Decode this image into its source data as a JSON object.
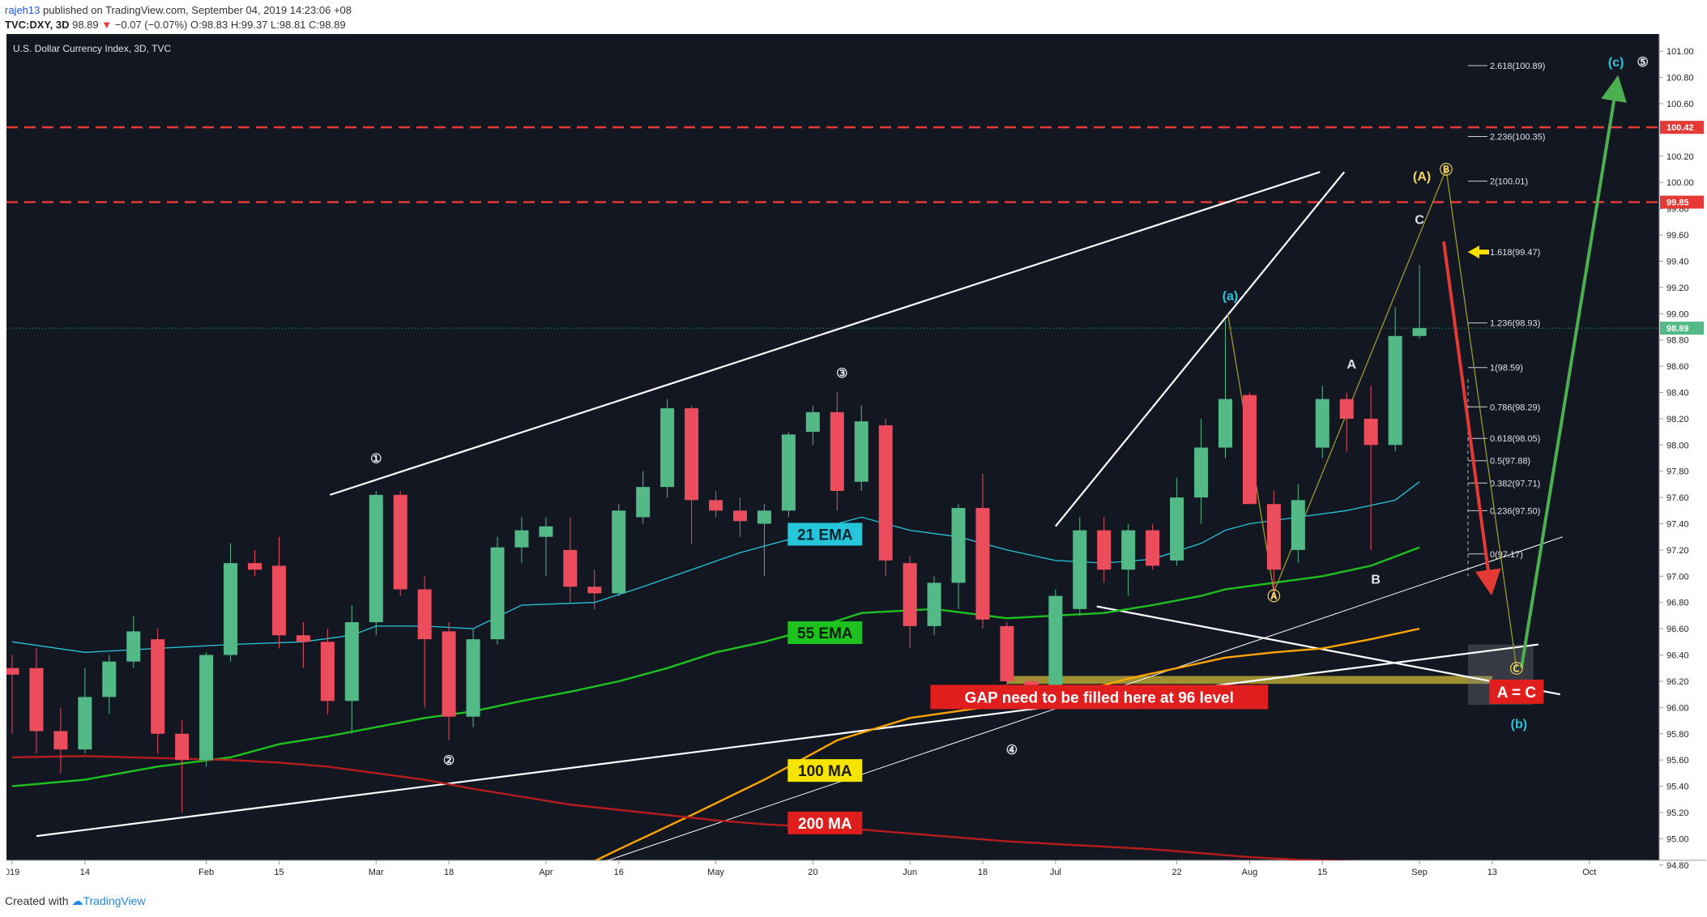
{
  "header": {
    "author": "rajeh13",
    "published": " published on TradingView.com, September 04, 2019 14:23:06 +08",
    "symbol": "TVC:DXY, 3D",
    "last": "98.89",
    "down_arrow": "▼",
    "change": "−0.07 (−0.07%)",
    "ohlc": "O:98.83 H:99.37 L:98.81 C:98.89"
  },
  "footer": {
    "created_with": "Created with",
    "brand": "TradingView"
  },
  "colors": {
    "background": "#131722",
    "up": "#53b987",
    "down": "#eb4d5c",
    "ema21": "#26c6da",
    "ema55": "#1ec21e",
    "ma100": "#ffa500",
    "ma200": "#b71c1c",
    "dashed": "#e53935",
    "fib": "#cfcfcf",
    "gap": "#b8a436"
  },
  "chart_data": {
    "type": "candlestick",
    "title": "U.S. Dollar Currency Index, 3D, TVC",
    "ylim": [
      94.7,
      101.1
    ],
    "y_ticks": [
      "101.00",
      "100.80",
      "100.60",
      "100.40",
      "100.20",
      "100.00",
      "99.80",
      "99.60",
      "99.40",
      "99.20",
      "99.00",
      "98.80",
      "98.60",
      "98.40",
      "98.20",
      "98.00",
      "97.80",
      "97.60",
      "97.40",
      "97.20",
      "97.00",
      "96.80",
      "96.60",
      "96.40",
      "96.20",
      "96.00",
      "95.80",
      "95.60",
      "95.40",
      "95.20",
      "95.00",
      "94.80"
    ],
    "x_ticks": [
      {
        "label": "019",
        "c": 0
      },
      {
        "label": "14",
        "c": 3
      },
      {
        "label": "Feb",
        "c": 8
      },
      {
        "label": "15",
        "c": 11
      },
      {
        "label": "Mar",
        "c": 15
      },
      {
        "label": "18",
        "c": 18
      },
      {
        "label": "Apr",
        "c": 22
      },
      {
        "label": "16",
        "c": 25
      },
      {
        "label": "May",
        "c": 29
      },
      {
        "label": "20",
        "c": 33
      },
      {
        "label": "Jun",
        "c": 37
      },
      {
        "label": "18",
        "c": 40
      },
      {
        "label": "Jul",
        "c": 43
      },
      {
        "label": "22",
        "c": 48
      },
      {
        "label": "Aug",
        "c": 51
      },
      {
        "label": "15",
        "c": 54
      },
      {
        "label": "Sep",
        "c": 58
      },
      {
        "label": "13",
        "c": 61
      },
      {
        "label": "Oct",
        "c": 65
      }
    ],
    "candles": [
      [
        96.3,
        96.4,
        95.8,
        96.25
      ],
      [
        96.3,
        96.45,
        95.65,
        95.82
      ],
      [
        95.82,
        96.0,
        95.5,
        95.68
      ],
      [
        95.68,
        96.3,
        95.65,
        96.08
      ],
      [
        96.08,
        96.4,
        95.95,
        96.35
      ],
      [
        96.35,
        96.7,
        96.3,
        96.58
      ],
      [
        96.52,
        96.6,
        95.65,
        95.8
      ],
      [
        95.8,
        95.9,
        95.2,
        95.6
      ],
      [
        95.6,
        96.42,
        95.55,
        96.4
      ],
      [
        96.4,
        97.25,
        96.35,
        97.1
      ],
      [
        97.1,
        97.2,
        97.0,
        97.05
      ],
      [
        97.08,
        97.3,
        96.45,
        96.55
      ],
      [
        96.55,
        96.65,
        96.3,
        96.5
      ],
      [
        96.5,
        96.6,
        95.95,
        96.05
      ],
      [
        96.05,
        96.78,
        95.8,
        96.65
      ],
      [
        96.65,
        97.65,
        96.55,
        97.62
      ],
      [
        97.62,
        97.65,
        96.85,
        96.9
      ],
      [
        96.9,
        97.0,
        96.0,
        96.52
      ],
      [
        96.58,
        96.65,
        95.75,
        95.93
      ],
      [
        95.93,
        96.6,
        95.85,
        96.52
      ],
      [
        96.52,
        97.3,
        96.48,
        97.22
      ],
      [
        97.22,
        97.45,
        97.1,
        97.35
      ],
      [
        97.3,
        97.45,
        97.0,
        97.38
      ],
      [
        97.2,
        97.45,
        96.8,
        96.92
      ],
      [
        96.92,
        97.05,
        96.75,
        96.87
      ],
      [
        96.87,
        97.55,
        96.85,
        97.5
      ],
      [
        97.45,
        97.8,
        97.4,
        97.68
      ],
      [
        97.68,
        98.35,
        97.6,
        98.28
      ],
      [
        98.28,
        98.3,
        97.25,
        97.58
      ],
      [
        97.58,
        97.65,
        97.45,
        97.5
      ],
      [
        97.5,
        97.6,
        97.3,
        97.42
      ],
      [
        97.4,
        97.55,
        97.0,
        97.5
      ],
      [
        97.5,
        98.1,
        97.45,
        98.08
      ],
      [
        98.1,
        98.3,
        98.0,
        98.25
      ],
      [
        98.25,
        98.4,
        97.5,
        97.65
      ],
      [
        97.72,
        98.3,
        97.65,
        98.18
      ],
      [
        98.15,
        98.2,
        97.0,
        97.12
      ],
      [
        97.1,
        97.15,
        96.45,
        96.62
      ],
      [
        96.62,
        97.0,
        96.55,
        96.95
      ],
      [
        96.95,
        97.55,
        96.75,
        97.52
      ],
      [
        97.52,
        97.78,
        96.6,
        96.67
      ],
      [
        96.62,
        96.65,
        96.05,
        96.2
      ],
      [
        96.2,
        96.23,
        96.12,
        96.15
      ],
      [
        96.15,
        96.9,
        96.1,
        96.85
      ],
      [
        96.75,
        97.45,
        96.7,
        97.35
      ],
      [
        97.35,
        97.45,
        96.95,
        97.05
      ],
      [
        97.05,
        97.4,
        96.85,
        97.35
      ],
      [
        97.35,
        97.4,
        97.05,
        97.08
      ],
      [
        97.12,
        97.75,
        97.08,
        97.6
      ],
      [
        97.6,
        98.2,
        97.4,
        97.98
      ],
      [
        97.98,
        98.95,
        97.9,
        98.35
      ],
      [
        98.38,
        98.4,
        97.55,
        97.55
      ],
      [
        97.55,
        97.65,
        96.85,
        97.05
      ],
      [
        97.2,
        97.7,
        97.1,
        97.58
      ],
      [
        97.98,
        98.45,
        97.9,
        98.35
      ],
      [
        98.35,
        98.4,
        97.95,
        98.2
      ],
      [
        98.2,
        98.45,
        97.2,
        98.0
      ],
      [
        98.0,
        99.05,
        97.95,
        98.83
      ],
      [
        98.83,
        99.37,
        98.81,
        98.89
      ]
    ],
    "series": [
      {
        "name": "21 EMA",
        "color": "#26c6da",
        "values": [
          [
            0,
            96.5
          ],
          [
            3,
            96.42
          ],
          [
            6,
            96.45
          ],
          [
            9,
            96.48
          ],
          [
            12,
            96.5
          ],
          [
            14,
            96.55
          ],
          [
            15,
            96.62
          ],
          [
            17,
            96.62
          ],
          [
            19,
            96.6
          ],
          [
            21,
            96.78
          ],
          [
            24,
            96.8
          ],
          [
            26,
            96.92
          ],
          [
            28,
            97.05
          ],
          [
            30,
            97.18
          ],
          [
            32,
            97.28
          ],
          [
            34,
            97.4
          ],
          [
            35,
            97.45
          ],
          [
            37,
            97.35
          ],
          [
            39,
            97.3
          ],
          [
            41,
            97.2
          ],
          [
            43,
            97.12
          ],
          [
            45,
            97.1
          ],
          [
            47,
            97.13
          ],
          [
            49,
            97.25
          ],
          [
            50,
            97.35
          ],
          [
            51,
            97.4
          ],
          [
            53,
            97.45
          ],
          [
            55,
            97.5
          ],
          [
            57,
            97.58
          ],
          [
            58,
            97.72
          ]
        ]
      },
      {
        "name": "55 EMA",
        "color": "#1ec21e",
        "values": [
          [
            0,
            95.4
          ],
          [
            3,
            95.45
          ],
          [
            6,
            95.55
          ],
          [
            9,
            95.62
          ],
          [
            11,
            95.72
          ],
          [
            13,
            95.78
          ],
          [
            15,
            95.85
          ],
          [
            17,
            95.92
          ],
          [
            19,
            95.97
          ],
          [
            21,
            96.05
          ],
          [
            23,
            96.12
          ],
          [
            25,
            96.2
          ],
          [
            27,
            96.3
          ],
          [
            29,
            96.42
          ],
          [
            31,
            96.5
          ],
          [
            33,
            96.6
          ],
          [
            35,
            96.72
          ],
          [
            38,
            96.75
          ],
          [
            41,
            96.68
          ],
          [
            43,
            96.7
          ],
          [
            45,
            96.72
          ],
          [
            47,
            96.78
          ],
          [
            49,
            96.85
          ],
          [
            50,
            96.9
          ],
          [
            52,
            96.95
          ],
          [
            54,
            97.0
          ],
          [
            56,
            97.08
          ],
          [
            58,
            97.22
          ]
        ]
      },
      {
        "name": "100 MA",
        "color": "#ffa500",
        "values": [
          [
            22,
            94.65
          ],
          [
            25,
            94.92
          ],
          [
            28,
            95.18
          ],
          [
            31,
            95.45
          ],
          [
            34,
            95.75
          ],
          [
            37,
            95.92
          ],
          [
            40,
            96.0
          ],
          [
            42,
            96.05
          ],
          [
            44,
            96.12
          ],
          [
            46,
            96.22
          ],
          [
            48,
            96.3
          ],
          [
            50,
            96.38
          ],
          [
            52,
            96.42
          ],
          [
            54,
            96.45
          ],
          [
            56,
            96.52
          ],
          [
            58,
            96.6
          ]
        ]
      },
      {
        "name": "200 MA",
        "color": "#b71c1c",
        "values": [
          [
            0,
            95.62
          ],
          [
            3,
            95.63
          ],
          [
            5,
            95.62
          ],
          [
            7,
            95.61
          ],
          [
            9,
            95.6
          ],
          [
            11,
            95.58
          ],
          [
            13,
            95.55
          ],
          [
            15,
            95.5
          ],
          [
            17,
            95.45
          ],
          [
            19,
            95.38
          ],
          [
            21,
            95.32
          ],
          [
            23,
            95.26
          ],
          [
            25,
            95.22
          ],
          [
            27,
            95.18
          ],
          [
            29,
            95.14
          ],
          [
            31,
            95.11
          ],
          [
            33,
            95.09
          ],
          [
            35,
            95.07
          ],
          [
            37,
            95.04
          ],
          [
            39,
            95.01
          ],
          [
            41,
            94.98
          ],
          [
            43,
            94.96
          ],
          [
            45,
            94.94
          ],
          [
            47,
            94.92
          ],
          [
            49,
            94.89
          ],
          [
            51,
            94.86
          ],
          [
            53,
            94.84
          ],
          [
            55,
            94.83
          ],
          [
            58,
            94.82
          ]
        ]
      }
    ],
    "price_labels": [
      {
        "text": "100.42",
        "y": 100.42,
        "style": "red"
      },
      {
        "text": "99.85",
        "y": 99.85,
        "style": "red"
      },
      {
        "text": "98.89",
        "y": 98.89,
        "style": "green"
      }
    ],
    "dashed_levels": [
      100.42,
      99.85
    ],
    "fib_levels": [
      {
        "label": "2.618(100.89)",
        "y": 100.89
      },
      {
        "label": "2.236(100.35)",
        "y": 100.35
      },
      {
        "label": "2(100.01)",
        "y": 100.01
      },
      {
        "label": "1.618(99.47)",
        "y": 99.47
      },
      {
        "label": "1.236(98.93)",
        "y": 98.93
      },
      {
        "label": "1(98.59)",
        "y": 98.59
      },
      {
        "label": "0.786(98.29)",
        "y": 98.29
      },
      {
        "label": "0.618(98.05)",
        "y": 98.05
      },
      {
        "label": "0.5(97.88)",
        "y": 97.88
      },
      {
        "label": "0.382(97.71)",
        "y": 97.71
      },
      {
        "label": "0.236(97.50)",
        "y": 97.5
      },
      {
        "label": "0(97.17)",
        "y": 97.17
      }
    ],
    "ma_labels": [
      {
        "text": "21 EMA",
        "c": 33.5,
        "y": 97.32,
        "bg": "#26c6da",
        "fg": "#0b2230"
      },
      {
        "text": "55 EMA",
        "c": 33.5,
        "y": 96.57,
        "bg": "#1ec21e",
        "fg": "#062006"
      },
      {
        "text": "100 MA",
        "c": 33.5,
        "y": 95.52,
        "bg": "#f5e400",
        "fg": "#1c1a00"
      },
      {
        "text": "200 MA",
        "c": 33.5,
        "y": 95.12,
        "bg": "#e01e1e",
        "fg": "#ffffff"
      }
    ],
    "annotations": [
      {
        "text": "GAP need to be filled here at 96 level",
        "c": 44.8,
        "y": 96.08,
        "style": "redbox"
      },
      {
        "text": "A = C",
        "c": 62.0,
        "y": 96.12,
        "style": "redbox"
      },
      {
        "text": "①",
        "c": 15.0,
        "y": 97.9,
        "color": "#e0e3eb"
      },
      {
        "text": "②",
        "c": 18.0,
        "y": 95.6,
        "color": "#e0e3eb"
      },
      {
        "text": "③",
        "c": 34.2,
        "y": 98.55,
        "color": "#e0e3eb"
      },
      {
        "text": "④",
        "c": 41.2,
        "y": 95.68,
        "color": "#e0e3eb"
      },
      {
        "text": "⑤",
        "c": 67.2,
        "y": 100.92,
        "color": "#e0e3eb"
      },
      {
        "text": "(a)",
        "c": 50.2,
        "y": 99.14,
        "color": "#26c6da"
      },
      {
        "text": "(b)",
        "c": 62.1,
        "y": 95.88,
        "color": "#26c6da"
      },
      {
        "text": "(c)",
        "c": 66.1,
        "y": 100.92,
        "color": "#26c6da"
      },
      {
        "text": "(A)",
        "c": 58.1,
        "y": 100.05,
        "color": "#f2d660"
      },
      {
        "text": "Ⓑ",
        "c": 59.1,
        "y": 100.1,
        "color": "#f2d660"
      },
      {
        "text": "Ⓐ",
        "c": 52.0,
        "y": 96.85,
        "color": "#f2d660"
      },
      {
        "text": "Ⓒ",
        "c": 62.0,
        "y": 96.3,
        "color": "#f2d660"
      },
      {
        "text": "A",
        "c": 55.2,
        "y": 98.62,
        "color": "#e0e3eb"
      },
      {
        "text": "B",
        "c": 56.2,
        "y": 96.98,
        "color": "#e0e3eb"
      },
      {
        "text": "C",
        "c": 58.0,
        "y": 99.72,
        "color": "#e0e3eb"
      }
    ]
  }
}
